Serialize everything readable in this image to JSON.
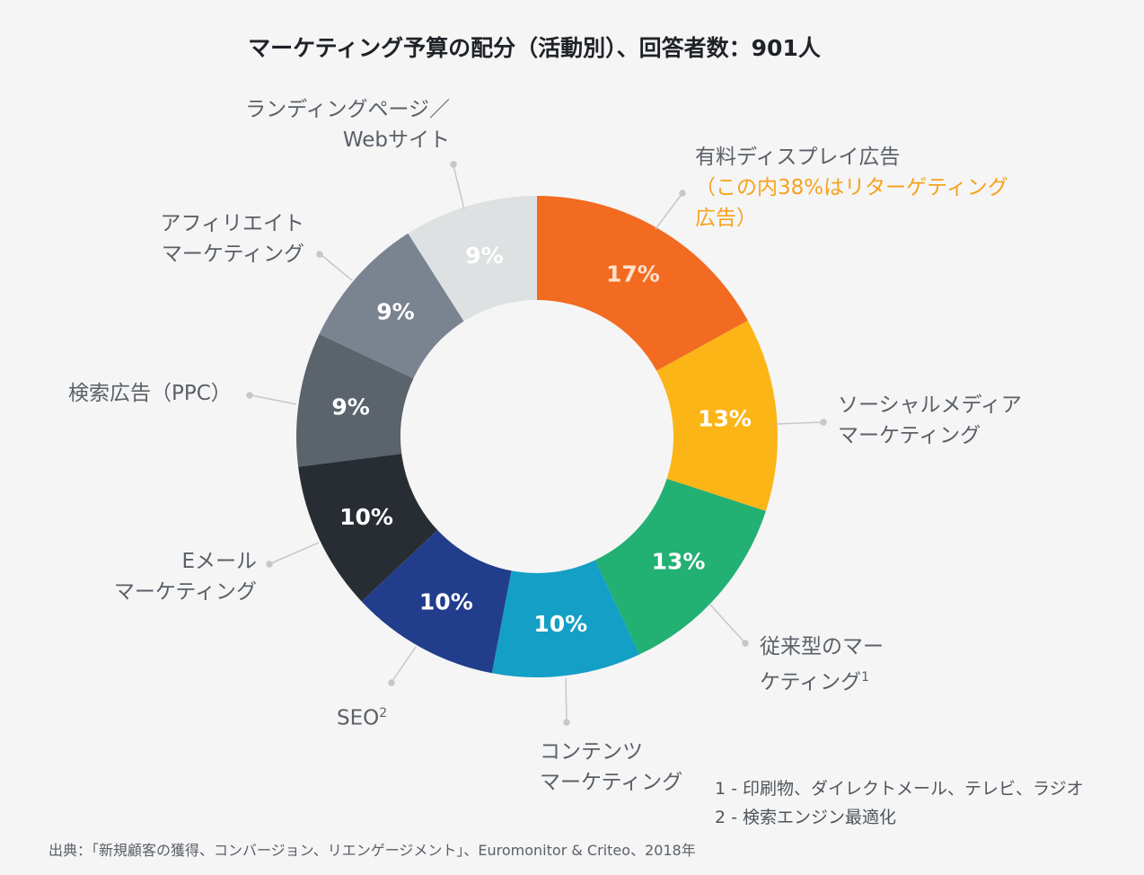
{
  "title": "マーケティング予算の配分（活動別）、回答者数：901人",
  "chart_data": {
    "type": "pie",
    "donut": true,
    "title": "マーケティング予算の配分（活動別）、回答者数：901人",
    "slices": [
      {
        "label": "有料ディスプレイ広告",
        "sub": "（この内38%はリターゲティング広告）",
        "value": 17,
        "display": "17%",
        "color": "#f26b21",
        "label_color": "#fde0cc"
      },
      {
        "label": "ソーシャルメディアマーケティング",
        "value": 13,
        "display": "13%",
        "color": "#fbb516",
        "label_color": "#ffffff"
      },
      {
        "label": "従来型のマーケティング",
        "sup": "1",
        "value": 13,
        "display": "13%",
        "color": "#22b073",
        "label_color": "#ffffff"
      },
      {
        "label": "コンテンツマーケティング",
        "value": 10,
        "display": "10%",
        "color": "#139fc6",
        "label_color": "#ffffff"
      },
      {
        "label": "SEO",
        "sup": "2",
        "value": 10,
        "display": "10%",
        "color": "#223d8c",
        "label_color": "#ffffff"
      },
      {
        "label": "Eメールマーケティング",
        "value": 10,
        "display": "10%",
        "color": "#282d33",
        "label_color": "#ffffff"
      },
      {
        "label": "検索広告（PPC）",
        "value": 9,
        "display": "9%",
        "color": "#5b636c",
        "label_color": "#ffffff"
      },
      {
        "label": "アフィリエイトマーケティング",
        "value": 9,
        "display": "9%",
        "color": "#7a8390",
        "label_color": "#ffffff"
      },
      {
        "label": "ランディングページ／Webサイト",
        "value": 9,
        "display": "9%",
        "color": "#dde1e2",
        "label_color": "#ffffff"
      }
    ]
  },
  "labels": {
    "display_1": "有料ディスプレイ広告",
    "display_2": "（この内38%はリターゲティング",
    "display_3": "広告）",
    "social_1": "ソーシャルメディア",
    "social_2": "マーケティング",
    "trad_1": "従来型のマー",
    "trad_2": "ケティング",
    "trad_sup": "1",
    "content_1": "コンテンツ",
    "content_2": "マーケティング",
    "seo": "SEO",
    "seo_sup": "2",
    "email_1": "Eメール",
    "email_2": "マーケティング",
    "ppc": "検索広告（PPC）",
    "aff_1": "アフィリエイト",
    "aff_2": "マーケティング",
    "lp_1": "ランディングページ／",
    "lp_2": "Webサイト"
  },
  "notes": [
    "1 - 印刷物、ダイレクトメール、テレビ、ラジオ",
    "2 - 検索エンジン最適化"
  ],
  "source": "出典：「新規顧客の獲得、コンバージョン、リエンゲージメント」、Euromonitor & Criteo、2018年"
}
